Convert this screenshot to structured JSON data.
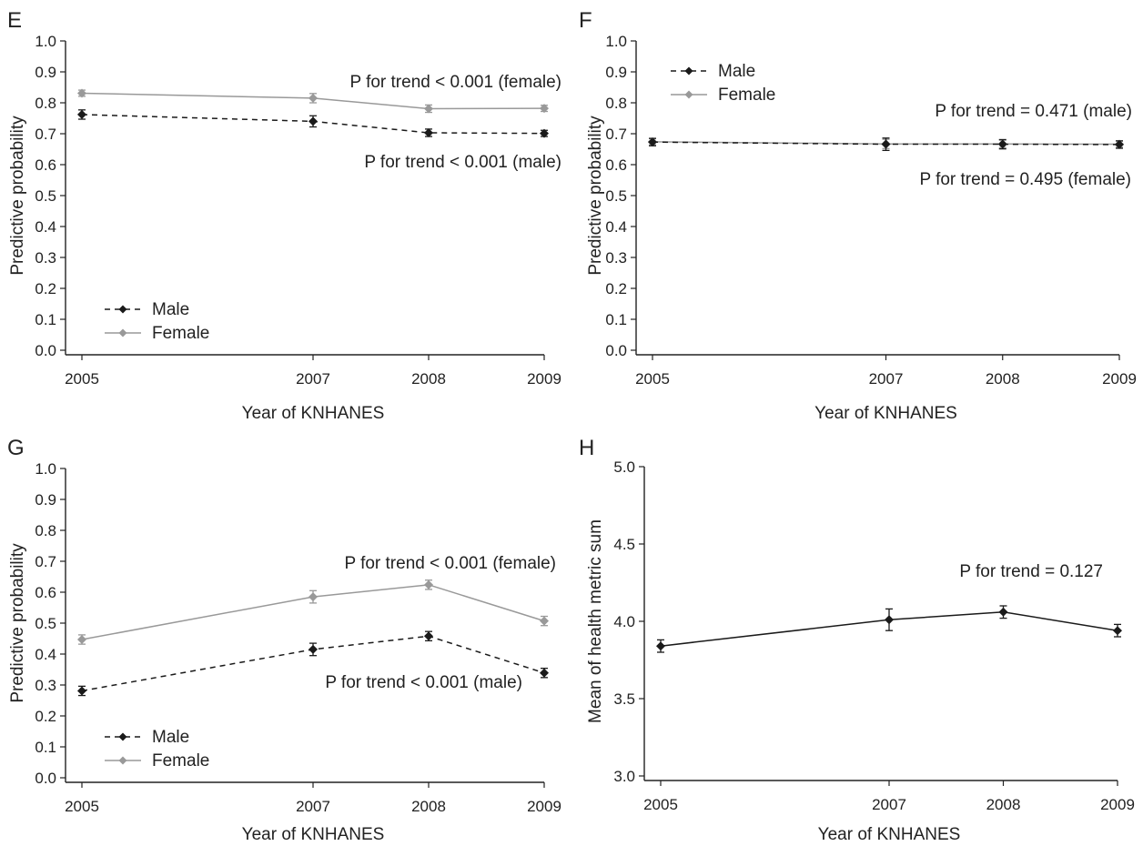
{
  "chart_data": [
    {
      "panel": "E",
      "type": "line",
      "x": [
        2005,
        2007,
        2008,
        2009
      ],
      "xlabel": "Year of KNHANES",
      "ylabel": "Predictive probability",
      "ylim": [
        0.0,
        1.0
      ],
      "yticks": [
        "0.0",
        "0.1",
        "0.2",
        "0.3",
        "0.4",
        "0.5",
        "0.6",
        "0.7",
        "0.8",
        "0.9",
        "1.0"
      ],
      "grid": false,
      "legend_position": "bottom-left",
      "series": [
        {
          "name": "Male",
          "color": "#1a1a1a",
          "dashed": true,
          "values": [
            0.762,
            0.74,
            0.703,
            0.701
          ],
          "errors": [
            0.015,
            0.018,
            0.012,
            0.01
          ]
        },
        {
          "name": "Female",
          "color": "#999999",
          "dashed": false,
          "values": [
            0.831,
            0.815,
            0.781,
            0.782
          ],
          "errors": [
            0.01,
            0.015,
            0.012,
            0.01
          ]
        }
      ],
      "annotations": [
        {
          "text": "P for trend < 0.001 (female)",
          "at": [
            2009,
            0.867
          ]
        },
        {
          "text": "P for trend < 0.001 (male)",
          "at": [
            2009,
            0.608
          ]
        }
      ]
    },
    {
      "panel": "F",
      "type": "line",
      "x": [
        2005,
        2007,
        2008,
        2009
      ],
      "xlabel": "Year of KNHANES",
      "ylabel": "Predictive probability",
      "ylim": [
        0.0,
        1.0
      ],
      "yticks": [
        "0.0",
        "0.1",
        "0.2",
        "0.3",
        "0.4",
        "0.5",
        "0.6",
        "0.7",
        "0.8",
        "0.9",
        "1.0"
      ],
      "grid": false,
      "legend_position": "top-left",
      "series": [
        {
          "name": "Male",
          "color": "#1a1a1a",
          "dashed": true,
          "values": [
            0.673,
            0.666,
            0.666,
            0.665
          ],
          "errors": [
            0.012,
            0.02,
            0.015,
            0.012
          ]
        },
        {
          "name": "Female",
          "color": "#999999",
          "dashed": false,
          "values": [
            0.674,
            0.667,
            0.667,
            0.666
          ],
          "errors": [
            0.01,
            0.015,
            0.012,
            0.01
          ]
        }
      ],
      "annotations": [
        {
          "text": "P for trend = 0.471 (male)",
          "at": [
            2009,
            0.764
          ]
        },
        {
          "text": "P for trend = 0.495 (female)",
          "at": [
            2009,
            0.543
          ]
        }
      ]
    },
    {
      "panel": "G",
      "type": "line",
      "x": [
        2005,
        2007,
        2008,
        2009
      ],
      "xlabel": "Year of KNHANES",
      "ylabel": "Predictive probability",
      "ylim": [
        0.0,
        1.0
      ],
      "yticks": [
        "0.0",
        "0.1",
        "0.2",
        "0.3",
        "0.4",
        "0.5",
        "0.6",
        "0.7",
        "0.8",
        "0.9",
        "1.0"
      ],
      "grid": false,
      "legend_position": "bottom-left",
      "series": [
        {
          "name": "Male",
          "color": "#1a1a1a",
          "dashed": true,
          "values": [
            0.281,
            0.415,
            0.458,
            0.339
          ],
          "errors": [
            0.015,
            0.02,
            0.015,
            0.015
          ]
        },
        {
          "name": "Female",
          "color": "#999999",
          "dashed": false,
          "values": [
            0.447,
            0.585,
            0.624,
            0.507
          ],
          "errors": [
            0.015,
            0.02,
            0.015,
            0.015
          ]
        }
      ],
      "annotations": [
        {
          "text": "P for trend  < 0.001 (female)",
          "at": [
            2009,
            0.683
          ]
        },
        {
          "text": "P for trend < 0.001 (male)",
          "at": [
            2009,
            0.387
          ]
        }
      ]
    },
    {
      "panel": "H",
      "type": "line",
      "x": [
        2005,
        2007,
        2008,
        2009
      ],
      "xlabel": "Year of KNHANES",
      "ylabel": "Mean of health metric sum",
      "ylim": [
        3.0,
        5.0
      ],
      "yticks": [
        "3.0",
        "3.5",
        "4.0",
        "4.5",
        "5.0"
      ],
      "grid": false,
      "series": [
        {
          "name": "",
          "color": "#1a1a1a",
          "dashed": false,
          "values": [
            3.84,
            4.01,
            4.06,
            3.94
          ],
          "errors": [
            0.04,
            0.07,
            0.04,
            0.04
          ]
        }
      ],
      "annotations": [
        {
          "text": "P for trend = 0.127",
          "at": [
            2008.9,
            4.36
          ]
        }
      ]
    }
  ]
}
